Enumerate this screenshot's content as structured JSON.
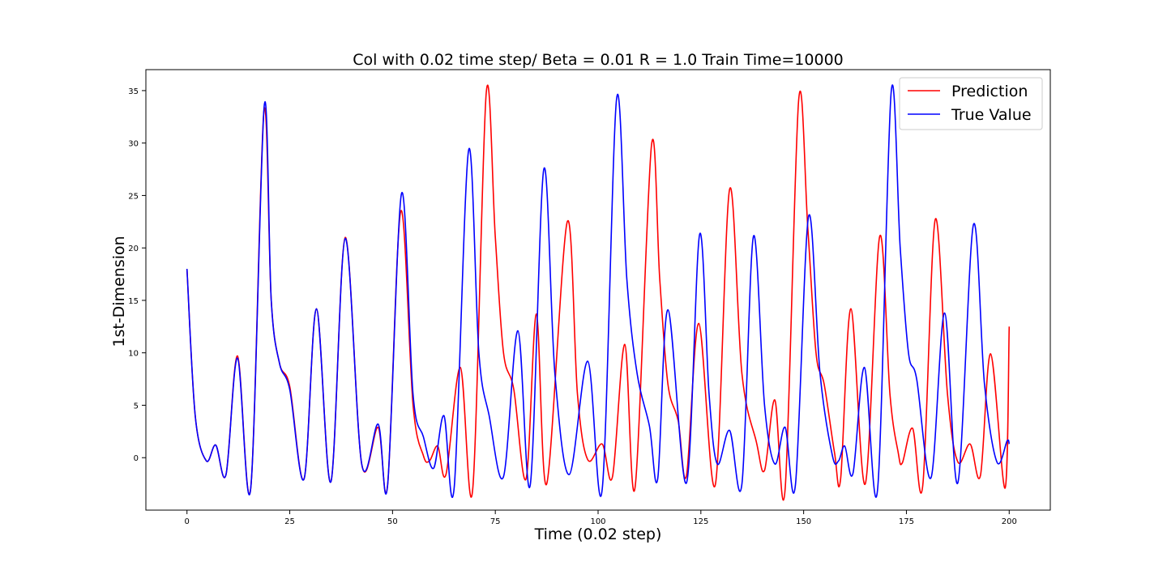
{
  "chart_data": {
    "type": "line",
    "title": "Col with 0.02 time step/ Beta = 0.01 R = 1.0 Train Time=10000",
    "xlabel": "Time (0.02 step)",
    "ylabel": "1st-Dimension",
    "xlim": [
      -10,
      210
    ],
    "ylim": [
      -5,
      37
    ],
    "xticks": [
      0,
      25,
      50,
      75,
      100,
      125,
      150,
      175,
      200
    ],
    "yticks": [
      0,
      5,
      10,
      15,
      20,
      25,
      30,
      35
    ],
    "grid": false,
    "legend_position": "top-right",
    "series": [
      {
        "name": "Prediction",
        "color": "#ff0000",
        "points": [
          [
            0,
            18
          ],
          [
            2,
            4
          ],
          [
            4.7,
            -0.3
          ],
          [
            7,
            1.2
          ],
          [
            9.5,
            -1.6
          ],
          [
            12.3,
            9.7
          ],
          [
            15.5,
            -2.9
          ],
          [
            18.7,
            33
          ],
          [
            20.5,
            15
          ],
          [
            22.5,
            9
          ],
          [
            25,
            6.8
          ],
          [
            28.5,
            -2
          ],
          [
            31.5,
            14.2
          ],
          [
            35,
            -2.3
          ],
          [
            38.5,
            21
          ],
          [
            42.5,
            -0.6
          ],
          [
            46.5,
            2.9
          ],
          [
            48.8,
            -2.6
          ],
          [
            52,
            23.5
          ],
          [
            55,
            5
          ],
          [
            57.5,
            0.2
          ],
          [
            59,
            -0.3
          ],
          [
            61,
            1.1
          ],
          [
            63,
            -1.6
          ],
          [
            66.5,
            8.6
          ],
          [
            69.5,
            -3
          ],
          [
            72.8,
            34.8
          ],
          [
            75,
            21
          ],
          [
            77,
            10
          ],
          [
            79.5,
            6.5
          ],
          [
            82.5,
            -2
          ],
          [
            85,
            13.7
          ],
          [
            87.5,
            -2.5
          ],
          [
            92.5,
            22.5
          ],
          [
            95,
            6
          ],
          [
            97.5,
            -0.2
          ],
          [
            101,
            1.3
          ],
          [
            103.5,
            -1.8
          ],
          [
            106.5,
            10.8
          ],
          [
            109,
            -2.8
          ],
          [
            113,
            29.8
          ],
          [
            115,
            17
          ],
          [
            117,
            7
          ],
          [
            119.5,
            3.5
          ],
          [
            121.5,
            -1.7
          ],
          [
            124.5,
            12.8
          ],
          [
            128.5,
            -2.6
          ],
          [
            132,
            25.6
          ],
          [
            135,
            8
          ],
          [
            138.5,
            1.5
          ],
          [
            140.5,
            -1.2
          ],
          [
            143,
            5.5
          ],
          [
            145.5,
            -3
          ],
          [
            148.8,
            34.1
          ],
          [
            151,
            22
          ],
          [
            153,
            10
          ],
          [
            155,
            7
          ],
          [
            157.5,
            0.5
          ],
          [
            159,
            -2
          ],
          [
            161.5,
            14.2
          ],
          [
            165,
            -2.5
          ],
          [
            168.5,
            21.1
          ],
          [
            171,
            6
          ],
          [
            173,
            0.5
          ],
          [
            174,
            -0.5
          ],
          [
            176.5,
            2.8
          ],
          [
            179,
            -2.6
          ],
          [
            182,
            22.7
          ],
          [
            185,
            6
          ],
          [
            187.5,
            -0.4
          ],
          [
            190.5,
            1.3
          ],
          [
            193,
            -1.7
          ],
          [
            195.5,
            9.9
          ],
          [
            199,
            -2.9
          ],
          [
            200,
            12.5
          ]
        ]
      },
      {
        "name": "True Value",
        "color": "#0000ff",
        "points": [
          [
            0,
            18
          ],
          [
            2,
            4
          ],
          [
            4.7,
            -0.3
          ],
          [
            7,
            1.2
          ],
          [
            9.5,
            -1.6
          ],
          [
            12.3,
            9.5
          ],
          [
            15.5,
            -2.9
          ],
          [
            18.8,
            33.6
          ],
          [
            20.5,
            15
          ],
          [
            22.5,
            9
          ],
          [
            25,
            6.5
          ],
          [
            28.5,
            -2
          ],
          [
            31.5,
            14.2
          ],
          [
            35,
            -2.3
          ],
          [
            38.5,
            20.9
          ],
          [
            42.5,
            -0.6
          ],
          [
            46.5,
            3.2
          ],
          [
            48.8,
            -2.6
          ],
          [
            52.2,
            25.2
          ],
          [
            55,
            6
          ],
          [
            57.5,
            2
          ],
          [
            60,
            -1
          ],
          [
            62.5,
            4
          ],
          [
            65,
            -2.8
          ],
          [
            68.5,
            29.3
          ],
          [
            71,
            10
          ],
          [
            73.5,
            4
          ],
          [
            77,
            -1.8
          ],
          [
            80.5,
            12.1
          ],
          [
            83.5,
            -2.6
          ],
          [
            86.8,
            27.5
          ],
          [
            89.5,
            8
          ],
          [
            93,
            -1.6
          ],
          [
            97.5,
            9.2
          ],
          [
            101,
            -3
          ],
          [
            104.5,
            34.2
          ],
          [
            107,
            17
          ],
          [
            109.5,
            8
          ],
          [
            112.5,
            3
          ],
          [
            114.5,
            -2
          ],
          [
            117,
            14.1
          ],
          [
            121.5,
            -2.4
          ],
          [
            124.7,
            21.3
          ],
          [
            127,
            6
          ],
          [
            129,
            -0.6
          ],
          [
            132,
            2.6
          ],
          [
            135,
            -2.5
          ],
          [
            137.8,
            21.1
          ],
          [
            140.5,
            5
          ],
          [
            143,
            -0.6
          ],
          [
            145.5,
            2.9
          ],
          [
            148,
            -2.6
          ],
          [
            151.2,
            23
          ],
          [
            154,
            8
          ],
          [
            157,
            0.2
          ],
          [
            158.5,
            -0.3
          ],
          [
            160,
            1.1
          ],
          [
            162,
            -1.5
          ],
          [
            164.8,
            8.6
          ],
          [
            168,
            -3
          ],
          [
            171.3,
            34.9
          ],
          [
            173.5,
            20
          ],
          [
            175.5,
            10
          ],
          [
            177.5,
            7.5
          ],
          [
            181,
            -1.9
          ],
          [
            184.3,
            13.8
          ],
          [
            187.5,
            -2.4
          ],
          [
            191.3,
            22.2
          ],
          [
            194,
            7
          ],
          [
            197,
            -0.4
          ],
          [
            199.5,
            1.6
          ],
          [
            200,
            1.3
          ]
        ]
      }
    ]
  }
}
